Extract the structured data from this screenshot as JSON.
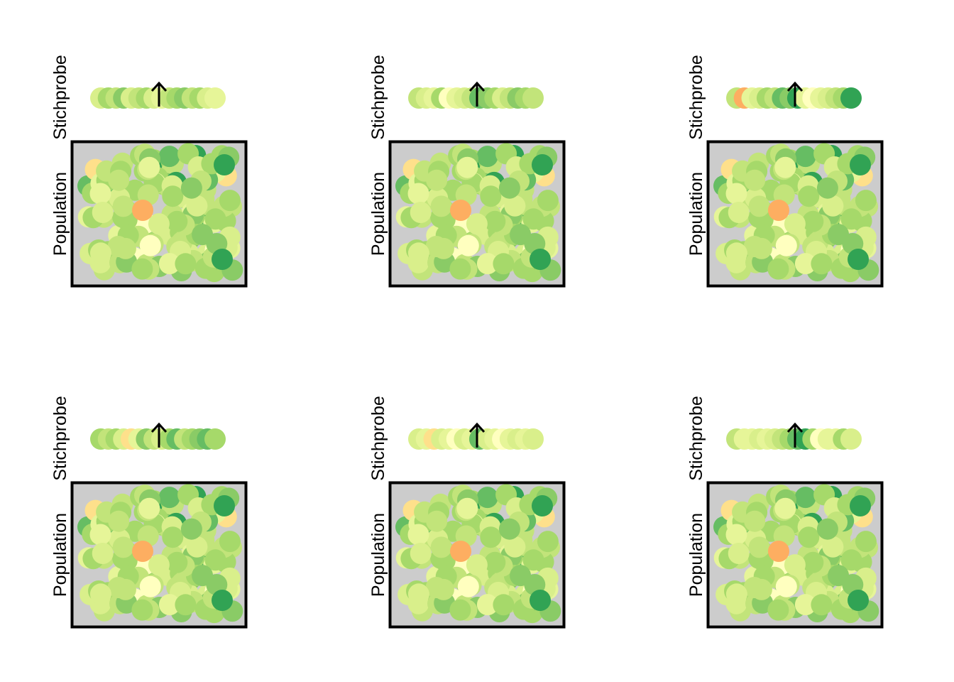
{
  "labels": {
    "sample": "Stichprobe",
    "population": "Population"
  },
  "colors": {
    "population_background": "#cccccc",
    "frame": "#000000",
    "arrow": "#000000",
    "palette": [
      "#fdae61",
      "#fee08b",
      "#ffffbf",
      "#e6f598",
      "#d9ef8b",
      "#c2e47a",
      "#a6d96a",
      "#8acb66",
      "#66bd63",
      "#31a354",
      "#1a9850"
    ]
  },
  "chart_data": [
    {
      "type": "scatter",
      "panel": 1,
      "population": {
        "values": [
          5,
          5,
          6,
          6,
          6,
          7,
          4,
          5,
          4,
          6,
          5,
          7,
          5,
          6,
          6,
          3,
          4,
          5,
          6,
          7,
          5,
          6,
          9,
          9,
          5,
          6,
          8,
          2,
          1,
          3,
          6,
          5,
          4,
          5,
          7,
          6,
          5,
          4,
          6,
          3,
          2,
          4,
          6,
          5,
          7,
          6,
          5,
          4,
          3,
          5,
          6,
          7,
          8,
          6,
          5,
          4,
          3,
          5,
          6,
          4
        ]
      },
      "sample": {
        "values": [
          4,
          6,
          5,
          7,
          4,
          5,
          6,
          4,
          3,
          5,
          6,
          7,
          5,
          6,
          4,
          3
        ]
      }
    },
    {
      "type": "scatter",
      "panel": 2,
      "population": {
        "values": [
          5,
          5,
          6,
          6,
          6,
          7,
          4,
          5,
          4,
          6,
          5,
          7,
          5,
          6,
          6,
          3,
          4,
          5,
          6,
          7,
          5,
          6,
          9,
          9,
          5,
          6,
          8,
          2,
          1,
          3,
          6,
          5,
          4,
          5,
          7,
          6,
          5,
          4,
          6,
          3,
          2,
          4,
          6,
          5,
          7,
          6,
          5,
          4,
          3,
          5,
          6,
          7,
          8,
          6,
          5,
          4,
          3,
          5,
          6,
          4
        ]
      },
      "sample": {
        "values": [
          5,
          4,
          3,
          6,
          2,
          3,
          4,
          5,
          8,
          7,
          6,
          4,
          5,
          7,
          6,
          5
        ]
      }
    },
    {
      "type": "scatter",
      "panel": 3,
      "population": {
        "values": [
          5,
          5,
          6,
          6,
          6,
          7,
          4,
          5,
          4,
          6,
          5,
          7,
          5,
          6,
          6,
          3,
          4,
          5,
          6,
          7,
          5,
          6,
          9,
          9,
          5,
          6,
          8,
          2,
          1,
          3,
          6,
          5,
          4,
          5,
          7,
          6,
          5,
          4,
          6,
          3,
          2,
          4,
          6,
          5,
          7,
          6,
          5,
          4,
          3,
          5,
          6,
          7,
          8,
          6,
          5,
          4,
          3,
          5,
          6,
          4
        ]
      },
      "sample": {
        "values": [
          5,
          0,
          3,
          4,
          6,
          5,
          8,
          7,
          9,
          3,
          2,
          3,
          4,
          5,
          6,
          9
        ]
      }
    },
    {
      "type": "scatter",
      "panel": 4,
      "population": {
        "values": [
          5,
          5,
          6,
          6,
          6,
          7,
          4,
          5,
          4,
          6,
          5,
          7,
          5,
          6,
          6,
          3,
          4,
          5,
          6,
          7,
          5,
          6,
          9,
          9,
          5,
          6,
          8,
          2,
          1,
          3,
          6,
          5,
          4,
          5,
          7,
          6,
          5,
          4,
          6,
          3,
          2,
          4,
          6,
          5,
          7,
          6,
          5,
          4,
          3,
          5,
          6,
          7,
          8,
          6,
          5,
          4,
          3,
          5,
          6,
          4
        ]
      },
      "sample": {
        "values": [
          6,
          5,
          6,
          4,
          1,
          3,
          7,
          5,
          4,
          6,
          8,
          5,
          6,
          7,
          8,
          6
        ]
      }
    },
    {
      "type": "scatter",
      "panel": 5,
      "population": {
        "values": [
          5,
          5,
          6,
          6,
          6,
          7,
          4,
          5,
          4,
          6,
          5,
          7,
          5,
          6,
          6,
          3,
          4,
          5,
          6,
          7,
          5,
          6,
          9,
          9,
          5,
          6,
          8,
          2,
          1,
          3,
          6,
          5,
          4,
          5,
          7,
          6,
          5,
          4,
          6,
          3,
          2,
          4,
          6,
          5,
          7,
          6,
          5,
          4,
          3,
          5,
          6,
          7,
          8,
          6,
          5,
          4,
          3,
          5,
          6,
          4
        ]
      },
      "sample": {
        "values": [
          4,
          3,
          1,
          4,
          3,
          2,
          4,
          3,
          8,
          4,
          3,
          2,
          3,
          4,
          3,
          4
        ]
      }
    },
    {
      "type": "scatter",
      "panel": 6,
      "population": {
        "values": [
          5,
          5,
          6,
          6,
          6,
          7,
          4,
          5,
          4,
          6,
          5,
          7,
          5,
          6,
          6,
          3,
          4,
          5,
          6,
          7,
          5,
          6,
          9,
          9,
          5,
          6,
          8,
          2,
          1,
          3,
          6,
          5,
          4,
          5,
          7,
          6,
          5,
          4,
          6,
          3,
          2,
          4,
          6,
          5,
          7,
          6,
          5,
          4,
          3,
          5,
          6,
          7,
          8,
          6,
          5,
          4,
          3,
          5,
          6,
          4
        ]
      },
      "sample": {
        "values": [
          5,
          3,
          3,
          4,
          3,
          4,
          5,
          6,
          8,
          9,
          6,
          2,
          3,
          3,
          6,
          4
        ]
      }
    }
  ]
}
